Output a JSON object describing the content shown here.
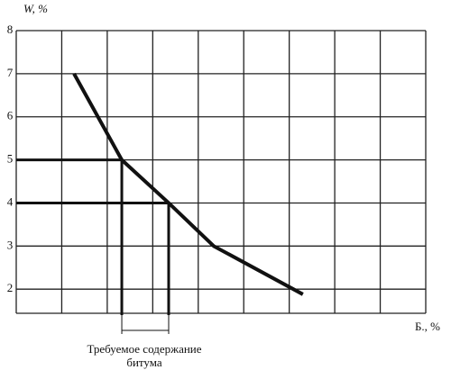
{
  "chart_data": {
    "type": "line",
    "y_label": "W, %",
    "x_label": "Б., %",
    "annotation": [
      "Требуемое содержание",
      "битума"
    ],
    "x": [
      1.27,
      2.32,
      3.35,
      4.34,
      6.3
    ],
    "series": [
      {
        "color": "#111111",
        "values": [
          7,
          5,
          4,
          3,
          1.88
        ]
      }
    ],
    "xlim": [
      0,
      9
    ],
    "xticks": [
      0,
      1,
      2,
      3,
      4,
      5,
      6,
      7,
      8,
      9
    ],
    "show_xtick_labels": false,
    "ylim": [
      1.44,
      8
    ],
    "yticks": [
      2,
      3,
      4,
      5,
      6,
      7,
      8
    ],
    "grid": true,
    "guides": [
      {
        "x": 2.32,
        "y": 5
      },
      {
        "x": 3.35,
        "y": 4
      }
    ]
  }
}
